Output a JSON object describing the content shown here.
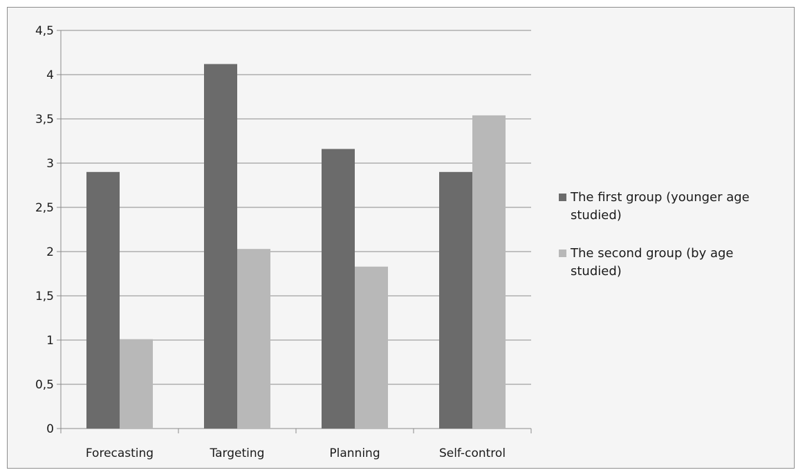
{
  "chart_data": {
    "type": "bar",
    "categories": [
      "Forecasting",
      "Targeting",
      "Planning",
      "Self-control"
    ],
    "series": [
      {
        "name": "The first group (younger age studied)",
        "name_lines": [
          "The first group (younger age",
          "studied)"
        ],
        "color": "#6b6b6b",
        "values": [
          2.9,
          4.12,
          3.16,
          2.9
        ]
      },
      {
        "name": "The second group (by age studied)",
        "name_lines": [
          "The second group (by age",
          "studied)"
        ],
        "color": "#b8b8b8",
        "values": [
          1.01,
          2.03,
          1.83,
          3.54
        ]
      }
    ],
    "ylim": [
      0,
      4.5
    ],
    "ytick_labels": [
      "0",
      "0,5",
      "1",
      "1,5",
      "2",
      "2,5",
      "3",
      "3,5",
      "4",
      "4,5"
    ],
    "grid": true,
    "legend": "right",
    "title": "",
    "xlabel": "",
    "ylabel": ""
  }
}
